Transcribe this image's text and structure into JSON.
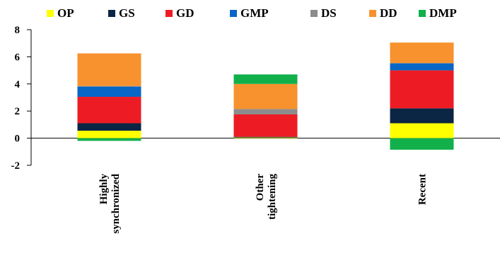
{
  "chart_data": {
    "type": "bar",
    "stacked": true,
    "title": "",
    "xlabel": "",
    "ylabel": "",
    "ylim": [
      -2,
      8
    ],
    "yticks": [
      -2,
      0,
      2,
      4,
      6,
      8
    ],
    "grid": false,
    "legend_position": "top",
    "categories": [
      [
        "Highly",
        "synchronized"
      ],
      [
        "Other",
        "tightening"
      ],
      [
        "Recent"
      ]
    ],
    "series": [
      {
        "name": "OP",
        "color": "#FFFF00",
        "values": [
          0.55,
          0.05,
          1.1
        ]
      },
      {
        "name": "GS",
        "color": "#0B2545",
        "values": [
          0.55,
          0.05,
          1.1
        ]
      },
      {
        "name": "GD",
        "color": "#ED1C24",
        "values": [
          1.95,
          1.65,
          2.8
        ]
      },
      {
        "name": "GMP",
        "color": "#0866C6",
        "values": [
          0.75,
          0.0,
          0.5
        ]
      },
      {
        "name": "DS",
        "color": "#8C8C8C",
        "values": [
          0.05,
          0.4,
          0.05
        ]
      },
      {
        "name": "DD",
        "color": "#F7922E",
        "values": [
          2.4,
          1.85,
          1.5
        ]
      },
      {
        "name": "DMP",
        "color": "#12B04B",
        "values": [
          -0.2,
          0.7,
          -0.85
        ]
      }
    ]
  }
}
